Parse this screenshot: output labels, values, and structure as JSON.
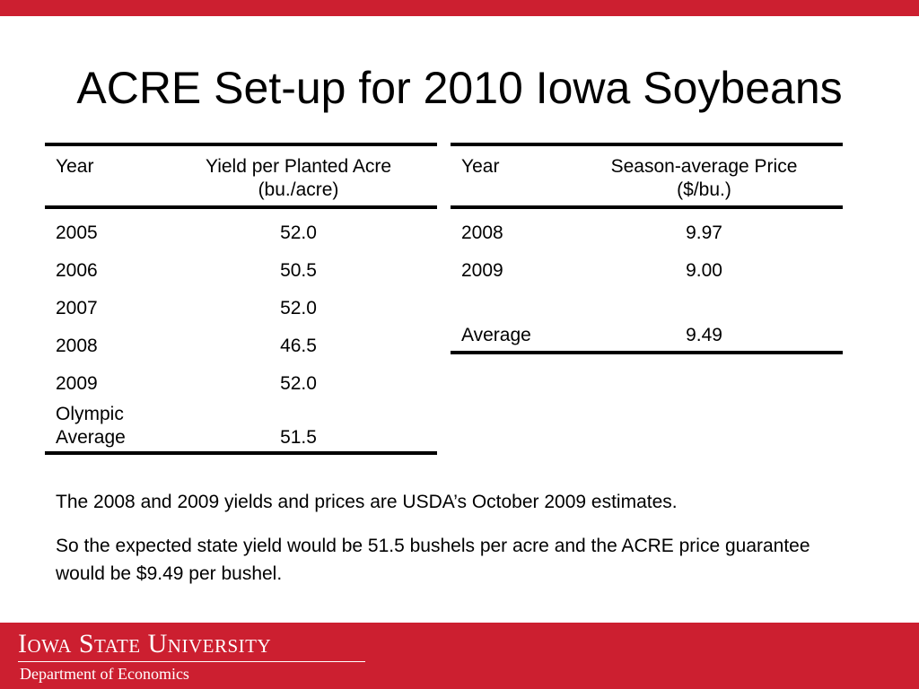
{
  "header": {
    "accent_color": "#cc1f30"
  },
  "title": "ACRE Set-up for 2010 Iowa Soybeans",
  "yield_table": {
    "headers": {
      "year": "Year",
      "value_line1": "Yield per Planted Acre",
      "value_line2": "(bu./acre)"
    },
    "rows": [
      {
        "year": "2005",
        "value": "52.0"
      },
      {
        "year": "2006",
        "value": "50.5"
      },
      {
        "year": "2007",
        "value": "52.0"
      },
      {
        "year": "2008",
        "value": "46.5"
      },
      {
        "year": "2009",
        "value": "52.0"
      }
    ],
    "summary": {
      "label_line1": "Olympic",
      "label_line2": "Average",
      "value": "51.5"
    }
  },
  "price_table": {
    "headers": {
      "year": "Year",
      "value_line1": "Season-average Price",
      "value_line2": "($/bu.)"
    },
    "rows": [
      {
        "year": "2008",
        "value": "9.97"
      },
      {
        "year": "2009",
        "value": "9.00"
      }
    ],
    "summary": {
      "label": "Average",
      "value": "9.49"
    }
  },
  "notes": [
    "The 2008 and 2009 yields and prices are USDA’s October 2009 estimates.",
    "So the expected state yield would be 51.5 bushels per acre and the ACRE price guarantee would be $9.49 per bushel."
  ],
  "footer": {
    "university": "Iowa State University",
    "department": "Department of Economics",
    "color": "#cc1f30"
  }
}
